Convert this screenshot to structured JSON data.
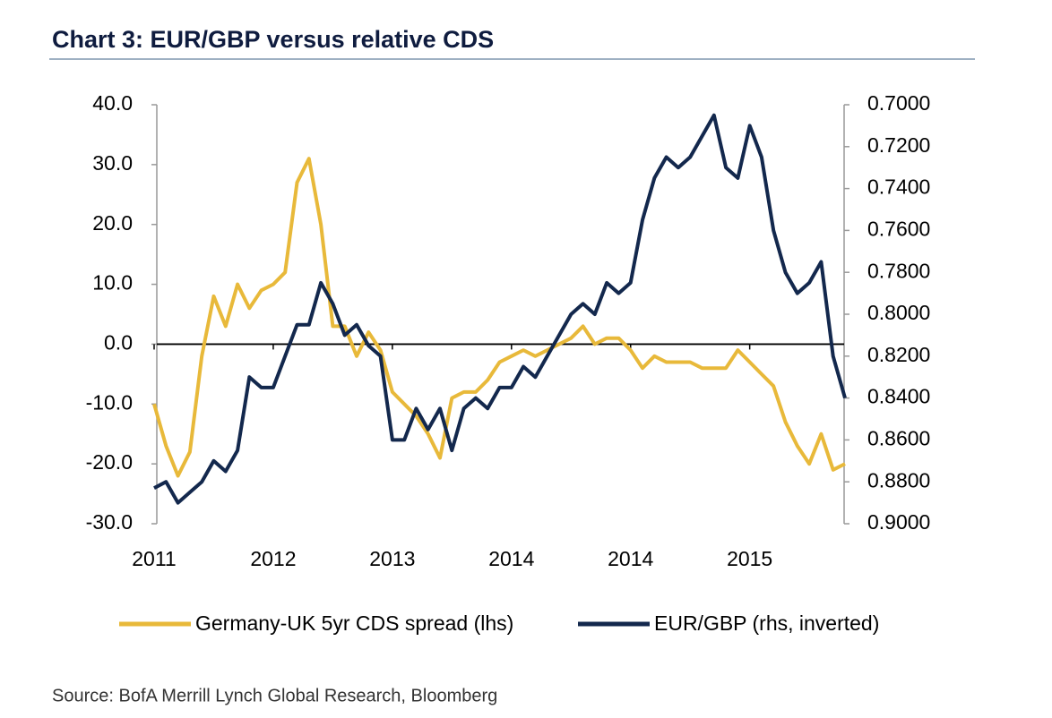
{
  "chart_data": {
    "type": "line",
    "title": "Chart 3: EUR/GBP versus relative CDS",
    "source": "Source: BofA Merrill Lynch Global Research, Bloomberg",
    "categories": [
      "2011",
      null,
      null,
      null,
      null,
      null,
      null,
      null,
      null,
      null,
      "2012",
      null,
      null,
      null,
      null,
      null,
      null,
      null,
      null,
      null,
      "2013",
      null,
      null,
      null,
      null,
      null,
      null,
      null,
      null,
      null,
      "2014",
      null,
      null,
      null,
      null,
      null,
      null,
      null,
      null,
      null,
      "2014",
      null,
      null,
      null,
      null,
      null,
      null,
      null,
      null,
      null,
      "2015",
      null,
      null,
      null,
      null,
      null,
      null,
      null,
      null
    ],
    "series": [
      {
        "name": "Germany-UK 5yr CDS spread (lhs)",
        "color": "#e8b93a",
        "axis": "y",
        "values": [
          -10,
          -17,
          -22,
          -18,
          -2,
          8,
          3,
          10,
          6,
          9,
          10,
          12,
          27,
          31,
          20,
          3,
          3,
          -2,
          2,
          -1,
          -8,
          -10,
          -12,
          -15,
          -19,
          -9,
          -8,
          -8,
          -6,
          -3,
          -2,
          -1,
          -2,
          -1,
          0,
          1,
          3,
          0,
          1,
          1,
          -1,
          -4,
          -2,
          -3,
          -3,
          -3,
          -4,
          -4,
          -4,
          -1,
          -3,
          -5,
          -7,
          -13,
          -17,
          -20,
          -15,
          -21,
          -20
        ]
      },
      {
        "name": "EUR/GBP (rhs, inverted)",
        "color": "#13284d",
        "axis": "y2",
        "values": [
          0.883,
          0.88,
          0.89,
          0.885,
          0.88,
          0.87,
          0.875,
          0.865,
          0.83,
          0.835,
          0.835,
          0.82,
          0.805,
          0.805,
          0.785,
          0.795,
          0.81,
          0.805,
          0.815,
          0.82,
          0.86,
          0.86,
          0.845,
          0.855,
          0.845,
          0.865,
          0.845,
          0.84,
          0.845,
          0.835,
          0.835,
          0.825,
          0.83,
          0.82,
          0.81,
          0.8,
          0.795,
          0.8,
          0.785,
          0.79,
          0.785,
          0.755,
          0.735,
          0.725,
          0.73,
          0.725,
          0.715,
          0.705,
          0.73,
          0.735,
          0.71,
          0.725,
          0.76,
          0.78,
          0.79,
          0.785,
          0.775,
          0.82,
          0.84
        ]
      }
    ],
    "ylim": [
      -30,
      40
    ],
    "yticks": [
      {
        "value": 40,
        "label": "40.0"
      },
      {
        "value": 30,
        "label": "30.0"
      },
      {
        "value": 20,
        "label": "20.0"
      },
      {
        "value": 10,
        "label": "10.0"
      },
      {
        "value": 0,
        "label": "0.0"
      },
      {
        "value": -10,
        "label": "-10.0"
      },
      {
        "value": -20,
        "label": "-20.0"
      },
      {
        "value": -30,
        "label": "-30.0"
      }
    ],
    "y2lim": [
      0.7,
      0.9
    ],
    "y2_inverted": true,
    "y2ticks": [
      {
        "value": 0.7,
        "label": "0.7000"
      },
      {
        "value": 0.72,
        "label": "0.7200"
      },
      {
        "value": 0.74,
        "label": "0.7400"
      },
      {
        "value": 0.76,
        "label": "0.7600"
      },
      {
        "value": 0.78,
        "label": "0.7800"
      },
      {
        "value": 0.8,
        "label": "0.8000"
      },
      {
        "value": 0.82,
        "label": "0.8200"
      },
      {
        "value": 0.84,
        "label": "0.8400"
      },
      {
        "value": 0.86,
        "label": "0.8600"
      },
      {
        "value": 0.88,
        "label": "0.8800"
      },
      {
        "value": 0.9,
        "label": "0.9000"
      }
    ],
    "grid": false,
    "legend": "bottom"
  }
}
